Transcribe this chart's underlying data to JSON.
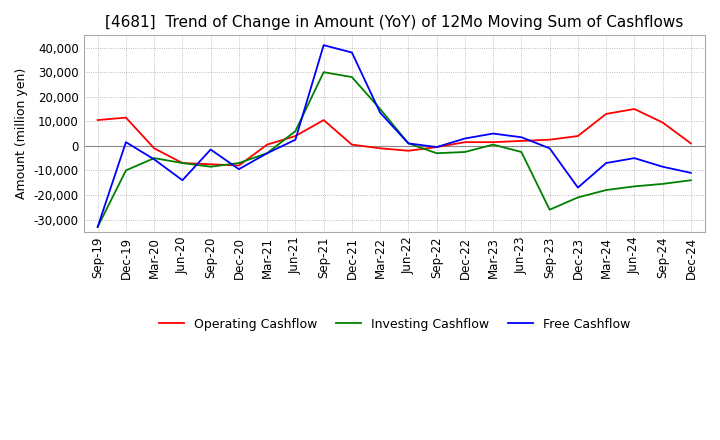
{
  "title": "[4681]  Trend of Change in Amount (YoY) of 12Mo Moving Sum of Cashflows",
  "ylabel": "Amount (million yen)",
  "title_fontsize": 11,
  "label_fontsize": 9,
  "tick_fontsize": 8.5,
  "ylim": [
    -35000,
    45000
  ],
  "yticks": [
    -30000,
    -20000,
    -10000,
    0,
    10000,
    20000,
    30000,
    40000
  ],
  "x_labels": [
    "Sep-19",
    "Dec-19",
    "Mar-20",
    "Jun-20",
    "Sep-20",
    "Dec-20",
    "Mar-21",
    "Jun-21",
    "Sep-21",
    "Dec-21",
    "Mar-22",
    "Jun-22",
    "Sep-22",
    "Dec-22",
    "Mar-23",
    "Jun-23",
    "Sep-23",
    "Dec-23",
    "Mar-24",
    "Jun-24",
    "Sep-24",
    "Dec-24"
  ],
  "operating": [
    10500,
    11500,
    -1000,
    -7000,
    -7500,
    -8000,
    500,
    4000,
    10500,
    500,
    -1000,
    -2000,
    -500,
    1500,
    1500,
    2000,
    2500,
    4000,
    13000,
    15000,
    9500,
    1000
  ],
  "investing": [
    -33000,
    -10000,
    -5000,
    -7000,
    -8500,
    -7000,
    -3000,
    6000,
    30000,
    28000,
    15000,
    1000,
    -3000,
    -2500,
    500,
    -2500,
    -26000,
    -21000,
    -18000,
    -16500,
    -15500,
    -14000
  ],
  "free": [
    -33000,
    1500,
    -5500,
    -14000,
    -1500,
    -9500,
    -3000,
    2500,
    41000,
    38000,
    13500,
    1000,
    -500,
    3000,
    5000,
    3500,
    -1000,
    -17000,
    -7000,
    -5000,
    -8500,
    -11000
  ],
  "op_color": "#ff0000",
  "inv_color": "#008000",
  "free_color": "#0000ff",
  "background_color": "#ffffff",
  "grid_color": "#aaaaaa"
}
